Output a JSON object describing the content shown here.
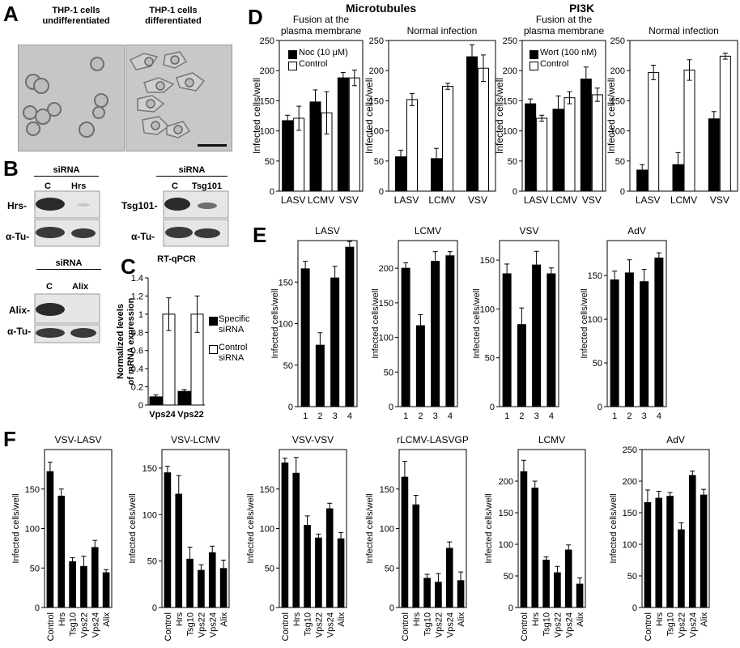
{
  "panel_letters": [
    "A",
    "B",
    "C",
    "D",
    "E",
    "F"
  ],
  "panelA": {
    "captions": [
      "THP-1 cells undifferentiated",
      "THP-1 cells differentiated"
    ],
    "caption_lines": [
      [
        "THP-1 cells",
        "undifferentiated"
      ],
      [
        "THP-1 cells",
        "differentiated"
      ]
    ]
  },
  "panelB": {
    "blots": [
      {
        "header": "siRNA",
        "lanes": [
          "C",
          "Hrs"
        ],
        "target": "Hrs-",
        "loading": "α-Tu-"
      },
      {
        "header": "siRNA",
        "lanes": [
          "C",
          "Tsg101"
        ],
        "target": "Tsg101-",
        "loading": "α-Tu-"
      },
      {
        "header": "siRNA",
        "lanes": [
          "C",
          "Alix"
        ],
        "target": "Alix-",
        "loading": "α-Tu-"
      }
    ]
  },
  "headers": {
    "microtubules": "Microtubules",
    "pi3k": "PI3K"
  },
  "legends": {
    "noc": [
      "Noc (10 μM)",
      "Control"
    ],
    "wort": [
      "Wort (100 nM)",
      "Control"
    ],
    "rtqpcr": [
      "Specific siRNA",
      "Control siRNA"
    ]
  },
  "chart_data": [
    {
      "id": "C",
      "type": "bar",
      "title": "RT-qPCR",
      "ylabel": "Normalized levels of mRNA expression",
      "categories": [
        "Vps24",
        "Vps22"
      ],
      "series": [
        {
          "name": "Specific siRNA",
          "values": [
            0.09,
            0.15
          ],
          "errors": [
            0.02,
            0.02
          ]
        },
        {
          "name": "Control siRNA",
          "values": [
            1.0,
            1.0
          ],
          "errors": [
            0.18,
            0.2
          ]
        }
      ],
      "ylim": [
        0,
        1.4
      ],
      "yticks": [
        "0",
        "0.2",
        "0.4",
        "0.6",
        "0.8",
        "1",
        "1.2",
        "1.4"
      ]
    },
    {
      "id": "D1",
      "type": "bar",
      "title": "Fusion at the plasma membrane",
      "ylabel": "Infected cells/well",
      "categories": [
        "LASV",
        "LCMV",
        "VSV"
      ],
      "series": [
        {
          "name": "Noc (10 μM)",
          "values": [
            117,
            148,
            188
          ],
          "errors": [
            9,
            20,
            9
          ]
        },
        {
          "name": "Control",
          "values": [
            121,
            130,
            188
          ],
          "errors": [
            20,
            35,
            13
          ]
        }
      ],
      "ylim": [
        0,
        250
      ],
      "yticks": [
        "0",
        "50",
        "100",
        "150",
        "200",
        "250"
      ]
    },
    {
      "id": "D2",
      "type": "bar",
      "title": "Normal infection",
      "ylabel": "Infected cells/well",
      "categories": [
        "LASV",
        "LCMV",
        "VSV"
      ],
      "series": [
        {
          "name": "Noc (10 μM)",
          "values": [
            57,
            54,
            223
          ],
          "errors": [
            11,
            17,
            20
          ]
        },
        {
          "name": "Control",
          "values": [
            152,
            174,
            204
          ],
          "errors": [
            10,
            5,
            22
          ]
        }
      ],
      "ylim": [
        0,
        250
      ],
      "yticks": [
        "0",
        "50",
        "100",
        "150",
        "200",
        "250"
      ]
    },
    {
      "id": "D3",
      "type": "bar",
      "title": "Fusion at the plasma membrane",
      "ylabel": "Infected cells/well",
      "categories": [
        "LASV",
        "LCMV",
        "VSV"
      ],
      "series": [
        {
          "name": "Wort (100 nM)",
          "values": [
            145,
            136,
            186
          ],
          "errors": [
            8,
            22,
            20
          ]
        },
        {
          "name": "Control",
          "values": [
            121,
            155,
            160
          ],
          "errors": [
            5,
            10,
            11
          ]
        }
      ],
      "ylim": [
        0,
        250
      ],
      "yticks": [
        "0",
        "50",
        "100",
        "150",
        "200",
        "250"
      ]
    },
    {
      "id": "D4",
      "type": "bar",
      "title": "Normal infection",
      "ylabel": "Infected cells/well",
      "categories": [
        "LASV",
        "LCMV",
        "VSV"
      ],
      "series": [
        {
          "name": "Wort (100 nM)",
          "values": [
            35,
            44,
            120
          ],
          "errors": [
            9,
            20,
            12
          ]
        },
        {
          "name": "Control",
          "values": [
            197,
            201,
            224
          ],
          "errors": [
            12,
            17,
            5
          ]
        }
      ],
      "ylim": [
        0,
        250
      ],
      "yticks": [
        "0",
        "50",
        "100",
        "150",
        "200",
        "250"
      ]
    },
    {
      "id": "E1",
      "type": "bar",
      "title": "LASV",
      "ylabel": "Infected cells/well",
      "categories": [
        "1",
        "2",
        "3",
        "4"
      ],
      "series": [
        {
          "values": [
            166,
            74,
            155,
            192
          ],
          "errors": [
            9,
            15,
            14,
            7
          ]
        }
      ],
      "ylim": [
        0,
        200
      ],
      "yticks": [
        "0",
        "50",
        "100",
        "150"
      ]
    },
    {
      "id": "E2",
      "type": "bar",
      "title": "LCMV",
      "ylabel": "Infected cells/well",
      "categories": [
        "1",
        "2",
        "3",
        "4"
      ],
      "series": [
        {
          "values": [
            200,
            117,
            210,
            218
          ],
          "errors": [
            8,
            16,
            14,
            6
          ]
        }
      ],
      "ylim": [
        0,
        240
      ],
      "yticks": [
        "0",
        "50",
        "100",
        "150",
        "200"
      ]
    },
    {
      "id": "E3",
      "type": "bar",
      "title": "VSV",
      "ylabel": "Infected cells/well",
      "categories": [
        "1",
        "2",
        "3",
        "4"
      ],
      "series": [
        {
          "values": [
            136,
            84,
            145,
            136
          ],
          "errors": [
            10,
            17,
            14,
            6
          ]
        }
      ],
      "ylim": [
        0,
        170
      ],
      "yticks": [
        "0",
        "50",
        "100",
        "150"
      ]
    },
    {
      "id": "E4",
      "type": "bar",
      "title": "AdV",
      "ylabel": "Infected cells/well",
      "categories": [
        "1",
        "2",
        "3",
        "4"
      ],
      "series": [
        {
          "values": [
            145,
            153,
            143,
            170
          ],
          "errors": [
            10,
            15,
            14,
            6
          ]
        }
      ],
      "ylim": [
        0,
        190
      ],
      "yticks": [
        "0",
        "50",
        "100",
        "150"
      ]
    },
    {
      "id": "F1",
      "type": "bar",
      "title": "VSV-LASV",
      "ylabel": "Infected cells/well",
      "categories": [
        "Control",
        "Hrs",
        "Tsg10",
        "Vps22",
        "Vps24",
        "Alix"
      ],
      "series": [
        {
          "values": [
            172,
            141,
            58,
            52,
            76,
            44
          ],
          "errors": [
            12,
            9,
            5,
            13,
            9,
            4
          ]
        }
      ],
      "ylim": [
        0,
        200
      ],
      "yticks": [
        "0",
        "50",
        "100",
        "150"
      ]
    },
    {
      "id": "F2",
      "type": "bar",
      "title": "VSV-LCMV",
      "ylabel": "Infected cells/well",
      "categories": [
        "Control",
        "Hrs",
        "Tsg10",
        "Vps22",
        "Vps24",
        "Alix"
      ],
      "series": [
        {
          "values": [
            145,
            122,
            52,
            40,
            59,
            42
          ],
          "errors": [
            7,
            20,
            13,
            6,
            7,
            9
          ]
        }
      ],
      "ylim": [
        0,
        170
      ],
      "yticks": [
        "0",
        "50",
        "100",
        "150"
      ]
    },
    {
      "id": "F3",
      "type": "bar",
      "title": "VSV-VSV",
      "ylabel": "Infected cells/well",
      "categories": [
        "Control",
        "Hrs",
        "Tsg10",
        "Vps22",
        "Vps24",
        "Alix"
      ],
      "series": [
        {
          "values": [
            183,
            170,
            104,
            88,
            125,
            87
          ],
          "errors": [
            6,
            20,
            12,
            5,
            7,
            8
          ]
        }
      ],
      "ylim": [
        0,
        200
      ],
      "yticks": [
        "0",
        "50",
        "100",
        "150"
      ]
    },
    {
      "id": "F4",
      "type": "bar",
      "title": "rLCMV-LASVGP",
      "ylabel": "Infected cells/well",
      "categories": [
        "Control",
        "Hrs",
        "Tsg10",
        "Vps22",
        "Vps24",
        "Alix"
      ],
      "series": [
        {
          "values": [
            165,
            130,
            37,
            32,
            75,
            34
          ],
          "errors": [
            20,
            12,
            5,
            11,
            8,
            11
          ]
        }
      ],
      "ylim": [
        0,
        200
      ],
      "yticks": [
        "0",
        "50",
        "100",
        "150"
      ]
    },
    {
      "id": "F5",
      "type": "bar",
      "title": "LCMV",
      "ylabel": "Infected cells/well",
      "categories": [
        "Control",
        "Hrs",
        "Tsg10",
        "Vps22",
        "Vps24",
        "Alix"
      ],
      "series": [
        {
          "values": [
            215,
            189,
            75,
            55,
            91,
            37
          ],
          "errors": [
            18,
            11,
            5,
            10,
            8,
            10
          ]
        }
      ],
      "ylim": [
        0,
        250
      ],
      "yticks": [
        "0",
        "50",
        "100",
        "150",
        "200"
      ]
    },
    {
      "id": "F6",
      "type": "bar",
      "title": "AdV",
      "ylabel": "Infected cells/well",
      "categories": [
        "Control",
        "Hrs",
        "Tsg10",
        "Vps22",
        "Vps24",
        "Alix"
      ],
      "series": [
        {
          "values": [
            166,
            173,
            176,
            123,
            209,
            178
          ],
          "errors": [
            20,
            11,
            6,
            11,
            7,
            9
          ]
        }
      ],
      "ylim": [
        0,
        250
      ],
      "yticks": [
        "0",
        "50",
        "100",
        "150",
        "200",
        "250"
      ]
    }
  ]
}
